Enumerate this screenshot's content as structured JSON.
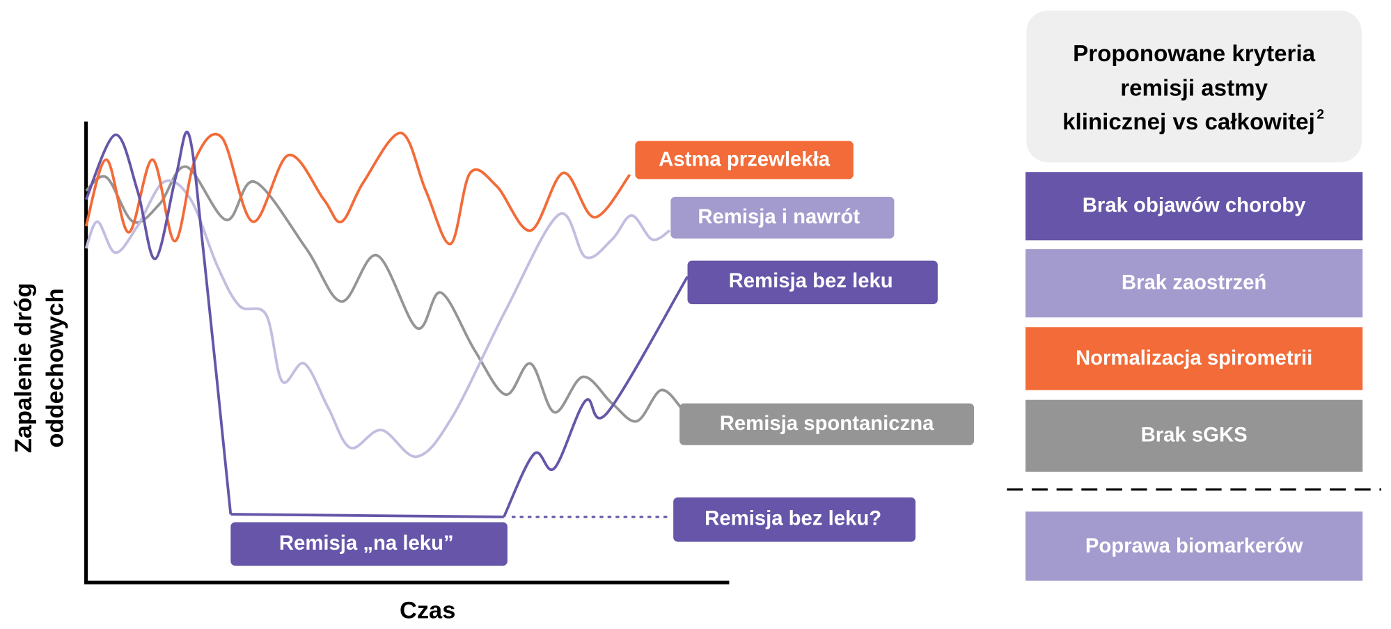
{
  "diagram": {
    "y_axis_label_lines": [
      "Zapalenie dróg",
      "oddechowych"
    ],
    "x_axis_label": "Czas",
    "curve_labels": {
      "chronic": "Astma przewlekła",
      "relapse": "Remisja i nawrót",
      "drug_free": "Remisja bez leku",
      "spontaneous": "Remisja spontaniczna",
      "drug_free_question": "Remisja bez leku?",
      "on_drug": "Remisja „na leku”"
    },
    "panel": {
      "title_lines": [
        "Proponowane kryteria",
        "remisji astmy",
        "klinicznej vs całkowitej"
      ],
      "title_footnote": "2",
      "criteria": [
        "Brak objawów choroby",
        "Brak zaostrzeń",
        "Normalizacja spirometrii",
        "Brak sGKS"
      ],
      "extra_criterion": "Poprawa biomarkerów"
    }
  }
}
